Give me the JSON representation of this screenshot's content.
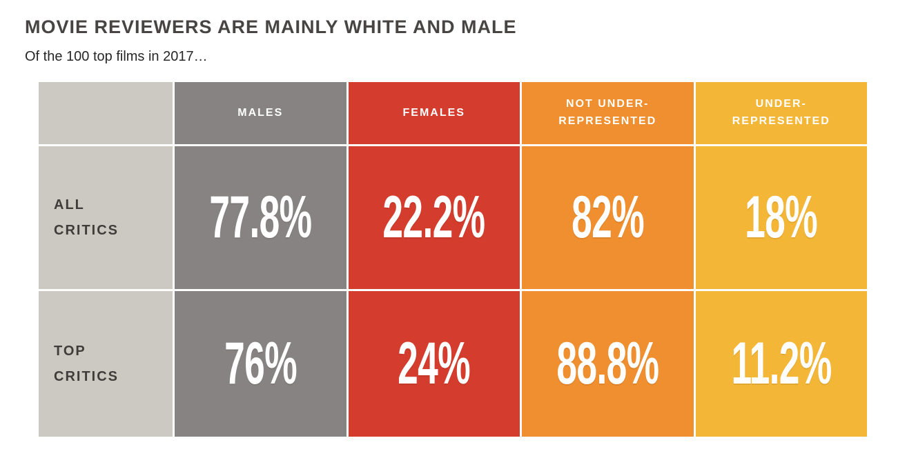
{
  "title": "MOVIE REVIEWERS ARE MAINLY WHITE AND MALE",
  "subtitle": "Of the 100 top films in 2017…",
  "colors": {
    "title_text": "#474443",
    "label_cell_bg": "#ccc8c2",
    "label_text": "#3f3c3a",
    "males_bg": "#888383",
    "females_bg": "#d43d2d",
    "not_underrepresented_bg": "#ef8f2f",
    "underrepresented_bg": "#f3b637",
    "value_text": "#ffffff"
  },
  "chart_data": {
    "type": "table",
    "title": "MOVIE REVIEWERS ARE MAINLY WHITE AND MALE",
    "subtitle": "Of the 100 top films in 2017…",
    "columns": [
      {
        "label": "MALES",
        "lines": [
          "MALES"
        ],
        "color": "#888383"
      },
      {
        "label": "FEMALES",
        "lines": [
          "FEMALES"
        ],
        "color": "#d43d2d"
      },
      {
        "label": "NOT UNDER-REPRESENTED",
        "lines": [
          "NOT UNDER-",
          "REPRESENTED"
        ],
        "color": "#ef8f2f"
      },
      {
        "label": "UNDER-REPRESENTED",
        "lines": [
          "UNDER-",
          "REPRESENTED"
        ],
        "color": "#f3b637"
      }
    ],
    "rows": [
      {
        "label": "ALL CRITICS",
        "lines": [
          "ALL",
          "CRITICS"
        ],
        "values": [
          "77.8%",
          "22.2%",
          "82%",
          "18%"
        ]
      },
      {
        "label": "TOP CRITICS",
        "lines": [
          "TOP",
          "CRITICS"
        ],
        "values": [
          "76%",
          "24%",
          "88.8%",
          "11.2%"
        ]
      }
    ]
  }
}
